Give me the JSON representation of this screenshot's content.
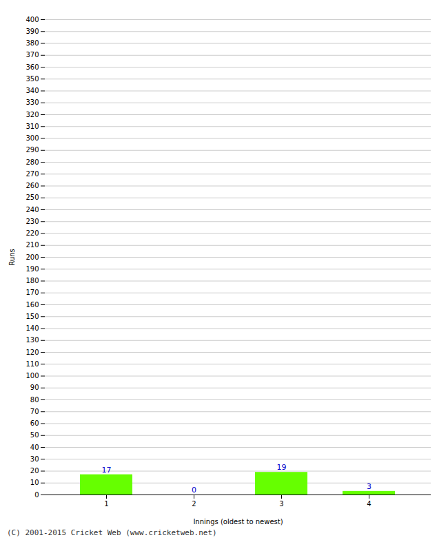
{
  "chart_data": {
    "type": "bar",
    "xlabel": "Innings (oldest to newest)",
    "ylabel": "Runs",
    "caption": "(C) 2001-2015 Cricket Web (www.cricketweb.net)",
    "categories": [
      1,
      2,
      3,
      4
    ],
    "values": [
      17,
      0,
      19,
      3
    ],
    "color": "#66ff00",
    "ylim": [
      0,
      400
    ],
    "yticks": [
      0,
      10,
      20,
      30,
      40,
      50,
      60,
      70,
      80,
      90,
      100,
      110,
      120,
      130,
      140,
      150,
      160,
      170,
      180,
      190,
      200,
      210,
      220,
      230,
      240,
      250,
      260,
      270,
      280,
      290,
      300,
      310,
      320,
      330,
      340,
      350,
      360,
      370,
      380,
      390,
      400
    ],
    "grid": true,
    "data_labels": true
  }
}
